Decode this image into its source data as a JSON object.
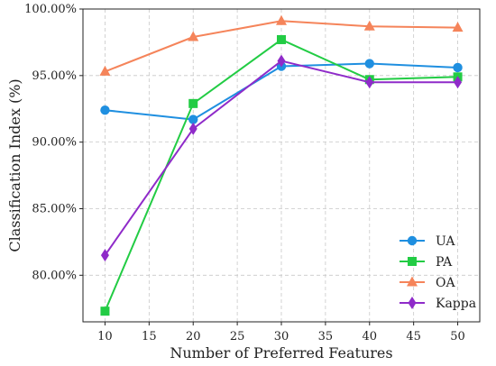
{
  "chart_data": {
    "type": "line",
    "xlabel": "Number of Preferred Features",
    "ylabel": "Classification Index (%)",
    "x": [
      10,
      20,
      30,
      40,
      50
    ],
    "xlim": [
      7.5,
      52.5
    ],
    "ylim": [
      76.5,
      100
    ],
    "xticks": [
      10,
      15,
      20,
      25,
      30,
      35,
      40,
      45,
      50
    ],
    "yticks": [
      80,
      85,
      90,
      95,
      100
    ],
    "ytick_labels": [
      "80.00%",
      "85.00%",
      "90.00%",
      "95.00%",
      "100.00%"
    ],
    "grid": true,
    "legend_position": "bottom-right",
    "series": [
      {
        "name": "UA",
        "values": [
          92.4,
          91.7,
          95.7,
          95.9,
          95.6
        ],
        "color": "#1f8fe0",
        "marker": "circle"
      },
      {
        "name": "PA",
        "values": [
          77.3,
          92.9,
          97.7,
          94.7,
          94.9
        ],
        "color": "#22cc44",
        "marker": "square"
      },
      {
        "name": "OA",
        "values": [
          95.3,
          97.9,
          99.1,
          98.7,
          98.6
        ],
        "color": "#f5845a",
        "marker": "triangle"
      },
      {
        "name": "Kappa",
        "values": [
          81.5,
          91.0,
          96.1,
          94.5,
          94.5
        ],
        "color": "#8f2bc9",
        "marker": "diamond"
      }
    ]
  }
}
